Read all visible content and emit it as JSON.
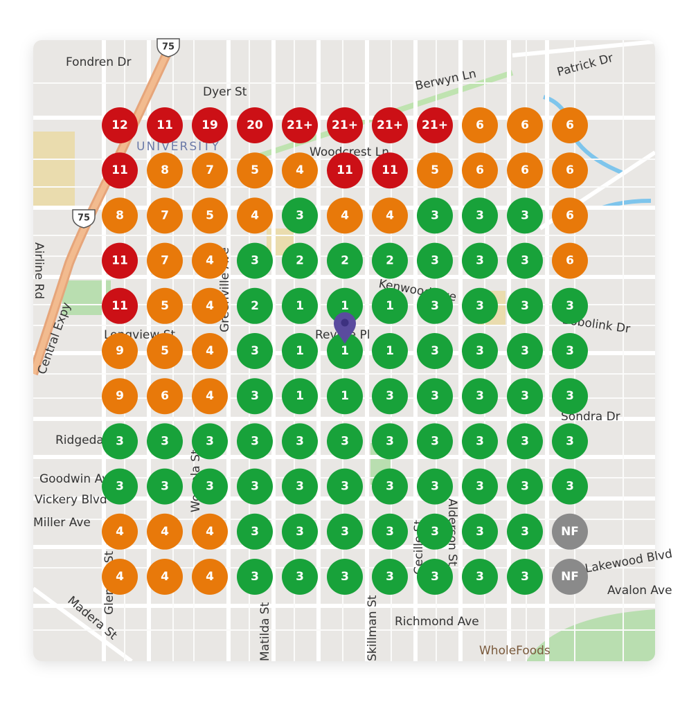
{
  "grid": {
    "rows": [
      [
        "12",
        "11",
        "19",
        "20",
        "21+",
        "21+",
        "21+",
        "21+",
        "6",
        "6",
        "6"
      ],
      [
        "11",
        "8",
        "7",
        "5",
        "4",
        "11",
        "11",
        "5",
        "6",
        "6",
        "6"
      ],
      [
        "8",
        "7",
        "5",
        "4",
        "3",
        "4",
        "4",
        "3",
        "3",
        "3",
        "6"
      ],
      [
        "11",
        "7",
        "4",
        "3",
        "2",
        "2",
        "2",
        "3",
        "3",
        "3",
        "6"
      ],
      [
        "11",
        "5",
        "4",
        "2",
        "1",
        "1",
        "1",
        "3",
        "3",
        "3",
        "3"
      ],
      [
        "9",
        "5",
        "4",
        "3",
        "1",
        "1",
        "1",
        "3",
        "3",
        "3",
        "3"
      ],
      [
        "9",
        "6",
        "4",
        "3",
        "1",
        "1",
        "3",
        "3",
        "3",
        "3",
        "3"
      ],
      [
        "3",
        "3",
        "3",
        "3",
        "3",
        "3",
        "3",
        "3",
        "3",
        "3",
        "3"
      ],
      [
        "3",
        "3",
        "3",
        "3",
        "3",
        "3",
        "3",
        "3",
        "3",
        "3",
        "3"
      ],
      [
        "4",
        "4",
        "4",
        "3",
        "3",
        "3",
        "3",
        "3",
        "3",
        "3",
        "NF"
      ],
      [
        "4",
        "4",
        "4",
        "3",
        "3",
        "3",
        "3",
        "3",
        "3",
        "3",
        "NF"
      ]
    ],
    "colors": {
      "high": "#cc1016",
      "mid": "#e8790a",
      "low": "#18a23a",
      "none": "#8a8a8a"
    }
  },
  "map": {
    "labels": [
      "Fondren Dr",
      "Dyer St",
      "Berwyn Ln",
      "Patrick Dr",
      "UNIVERSITY",
      "Woodcrest Ln",
      "Airline Rd",
      "Central Expy",
      "Greenville Ave",
      "Kenwood Ave",
      "Bobolink Dr",
      "Longview St",
      "Revere Pl",
      "Sondra Dr",
      "Ridgedale",
      "Goodwin Ave",
      "Vickery Blvd",
      "Miller Ave",
      "Richmond Ave",
      "Avalon Ave",
      "Lakewood Blvd",
      "WholeFoods",
      "Matilda St",
      "Skillman St",
      "Alderson St",
      "Cecille St",
      "Madera St",
      "Glencoe St",
      "Worcola St"
    ],
    "shields": [
      "75",
      "75"
    ]
  }
}
